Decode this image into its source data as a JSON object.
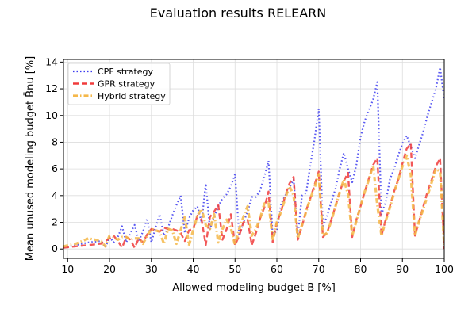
{
  "chart_data": {
    "type": "line",
    "title": "Evaluation results RELEARN",
    "xlabel": "Allowed modeling budget B [%]",
    "ylabel": "Mean unused modeling budget B̄nu [%]",
    "xlim": [
      9,
      100
    ],
    "ylim": [
      -0.7,
      14.2
    ],
    "xticks": [
      10,
      20,
      30,
      40,
      50,
      60,
      70,
      80,
      90,
      100
    ],
    "yticks": [
      0,
      2,
      4,
      6,
      8,
      10,
      12,
      14
    ],
    "grid": true,
    "legend": "upper-left",
    "series": [
      {
        "name": "CPF strategy",
        "color": "#3b3bf0",
        "dash": "dotted",
        "x": [
          9,
          12,
          15,
          18,
          19,
          20,
          21,
          22,
          23,
          24,
          25,
          26,
          27,
          28,
          29,
          30,
          31,
          32,
          33,
          34,
          35,
          36,
          37,
          38,
          39,
          40,
          41,
          42,
          43,
          44,
          45,
          46,
          47,
          48,
          49,
          50,
          51,
          52,
          53,
          54,
          55,
          56,
          57,
          58,
          59,
          60,
          61,
          62,
          63,
          64,
          65,
          66,
          67,
          68,
          69,
          70,
          71,
          72,
          73,
          74,
          75,
          76,
          77,
          78,
          79,
          80,
          81,
          82,
          83,
          84,
          85,
          86,
          87,
          88,
          89,
          90,
          91,
          92,
          93,
          94,
          95,
          96,
          97,
          98,
          99,
          100
        ],
        "y": [
          0.1,
          0.3,
          0.5,
          0.6,
          0.1,
          0.9,
          0.5,
          0.9,
          1.7,
          0.5,
          1.2,
          1.8,
          0.6,
          1.3,
          2.3,
          0.5,
          1.6,
          2.6,
          1.0,
          1.6,
          2.5,
          3.3,
          4.0,
          1.2,
          2.3,
          2.9,
          3.2,
          2.0,
          4.9,
          1.5,
          2.4,
          3.2,
          3.8,
          4.1,
          4.7,
          5.6,
          1.0,
          2.0,
          2.8,
          3.9,
          3.9,
          4.4,
          5.4,
          6.6,
          1.0,
          1.4,
          3.4,
          4.0,
          4.6,
          5.2,
          1.0,
          4.0,
          4.2,
          6.3,
          8.2,
          10.5,
          1.6,
          2.5,
          3.5,
          4.5,
          6.0,
          7.2,
          6.0,
          5.0,
          6.3,
          8.4,
          9.6,
          10.4,
          11.2,
          12.5,
          2.6,
          3.5,
          5.2,
          6.0,
          7.0,
          7.9,
          8.5,
          7.7,
          6.8,
          7.8,
          8.8,
          10.0,
          11.0,
          12.0,
          13.6,
          11.2
        ]
      },
      {
        "name": "GPR strategy",
        "color": "#f03b3b",
        "dash": "dashed",
        "x": [
          9,
          12,
          15,
          18,
          19,
          20,
          21,
          22,
          23,
          24,
          25,
          26,
          27,
          28,
          29,
          30,
          31,
          32,
          33,
          34,
          35,
          36,
          37,
          38,
          39,
          40,
          41,
          42,
          43,
          44,
          45,
          46,
          47,
          48,
          49,
          50,
          51,
          52,
          53,
          54,
          55,
          56,
          57,
          58,
          59,
          60,
          61,
          62,
          63,
          64,
          65,
          66,
          67,
          68,
          69,
          70,
          71,
          72,
          73,
          74,
          75,
          76,
          77,
          78,
          79,
          80,
          81,
          82,
          83,
          84,
          85,
          86,
          87,
          88,
          89,
          90,
          91,
          92,
          93,
          94,
          95,
          96,
          97,
          98,
          99,
          100
        ],
        "y": [
          0.1,
          0.2,
          0.3,
          0.4,
          0.6,
          0.8,
          1.0,
          0.6,
          0.1,
          0.9,
          0.7,
          0.1,
          0.8,
          0.5,
          1.1,
          1.5,
          1.4,
          1.3,
          1.6,
          1.5,
          1.5,
          1.4,
          1.2,
          0.6,
          1.4,
          1.5,
          2.5,
          2.2,
          0.3,
          2.4,
          2.8,
          3.3,
          0.7,
          1.5,
          2.6,
          0.3,
          1.0,
          2.0,
          2.2,
          0.3,
          1.2,
          2.3,
          3.1,
          4.3,
          0.5,
          2.0,
          2.8,
          4.0,
          4.9,
          5.4,
          0.7,
          1.7,
          2.9,
          3.8,
          4.8,
          5.8,
          0.9,
          1.2,
          2.2,
          3.2,
          4.3,
          5.1,
          5.7,
          0.9,
          2.2,
          3.2,
          4.3,
          5.3,
          6.3,
          6.8,
          1.0,
          2.2,
          3.2,
          4.3,
          5.2,
          6.4,
          7.5,
          7.9,
          1.0,
          2.1,
          3.2,
          4.3,
          5.2,
          6.2,
          6.8,
          0.0
        ]
      },
      {
        "name": "Hybrid strategy",
        "color": "#f5b84a",
        "dash": "dashdot",
        "x": [
          9,
          12,
          15,
          18,
          19,
          20,
          21,
          22,
          23,
          24,
          25,
          26,
          27,
          28,
          29,
          30,
          31,
          32,
          33,
          34,
          35,
          36,
          37,
          38,
          39,
          40,
          41,
          42,
          43,
          44,
          45,
          46,
          47,
          48,
          49,
          50,
          51,
          52,
          53,
          54,
          55,
          56,
          57,
          58,
          59,
          60,
          61,
          62,
          63,
          64,
          65,
          66,
          67,
          68,
          69,
          70,
          71,
          72,
          73,
          74,
          75,
          76,
          77,
          78,
          79,
          80,
          81,
          82,
          83,
          84,
          85,
          86,
          87,
          88,
          89,
          90,
          91,
          92,
          93,
          94,
          95,
          96,
          97,
          98,
          99,
          100
        ],
        "y": [
          0.2,
          0.4,
          0.8,
          0.6,
          0.2,
          1.0,
          0.9,
          0.7,
          0.9,
          0.9,
          0.7,
          0.8,
          0.8,
          0.4,
          1.0,
          1.5,
          1.4,
          1.3,
          0.4,
          1.5,
          1.4,
          0.4,
          1.4,
          2.4,
          0.3,
          1.4,
          2.5,
          3.0,
          1.8,
          1.5,
          2.6,
          0.5,
          1.5,
          2.2,
          1.6,
          0.3,
          1.5,
          2.4,
          3.2,
          1.0,
          1.5,
          2.3,
          3.4,
          3.6,
          0.6,
          2.0,
          2.8,
          3.8,
          4.7,
          4.0,
          0.8,
          1.8,
          2.8,
          3.8,
          4.6,
          5.6,
          1.0,
          1.2,
          2.1,
          3.2,
          4.2,
          5.2,
          4.1,
          1.0,
          2.1,
          3.2,
          4.3,
          5.2,
          6.3,
          3.3,
          1.0,
          2.1,
          3.1,
          4.2,
          5.2,
          6.2,
          7.0,
          5.6,
          1.0,
          2.1,
          3.0,
          4.0,
          5.0,
          6.0,
          5.8,
          0.2
        ]
      }
    ]
  }
}
